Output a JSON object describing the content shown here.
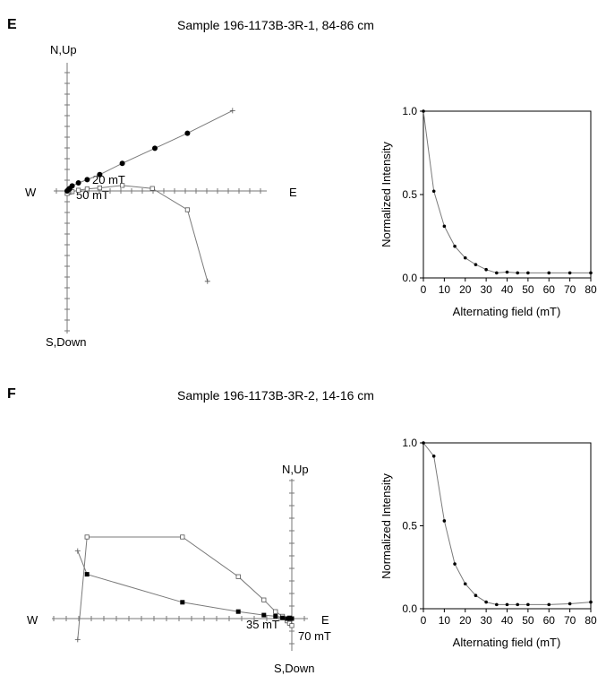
{
  "panels": [
    {
      "letter": "E",
      "title": "Sample 196-1173B-3R-1, 84-86 cm"
    },
    {
      "letter": "F",
      "title": "Sample 196-1173B-3R-2, 14-16 cm"
    }
  ],
  "chart_data": [
    {
      "type": "scatter",
      "subtype": "orthogonal-vector-plot",
      "panel": "E",
      "axis_labels": {
        "north": "N,Up",
        "south": "S,Down",
        "west": "W",
        "east": "E"
      },
      "annotations": [
        "20 mT",
        "50 mT"
      ],
      "series": [
        {
          "marker": "filled-circle",
          "points": [
            [
              48,
              23
            ],
            [
              35,
              17
            ],
            [
              22,
              11
            ],
            [
              13,
              6.5
            ],
            [
              8,
              4.5
            ],
            [
              4.5,
              3.2
            ],
            [
              2,
              2
            ],
            [
              1,
              1
            ],
            [
              0.5,
              0.5
            ],
            [
              0,
              0
            ]
          ]
        },
        {
          "marker": "open-square",
          "points": [
            [
              48,
              -7.5
            ],
            [
              34,
              1
            ],
            [
              22,
              2.2
            ],
            [
              13,
              1.2
            ],
            [
              8,
              0.8
            ],
            [
              4.5,
              0.3
            ],
            [
              2,
              -0.3
            ],
            [
              1,
              -0.5
            ],
            [
              0.5,
              -0.6
            ],
            [
              0,
              -1
            ]
          ]
        }
      ],
      "extension_points": {
        "filled": [
          [
            66,
            32
          ]
        ],
        "open": [
          [
            56,
            -36
          ]
        ]
      },
      "colors": {
        "line": "#7a7a7a",
        "marker": "#000000"
      }
    },
    {
      "type": "line",
      "panel": "E",
      "xlabel": "Alternating field (mT)",
      "ylabel": "Normalized Intensity",
      "xlim": [
        0,
        80
      ],
      "ylim": [
        0,
        1
      ],
      "xticks": [
        0,
        10,
        20,
        30,
        40,
        50,
        60,
        70,
        80
      ],
      "yticks": [
        "0.0",
        "0.5",
        "1.0"
      ],
      "x": [
        0,
        5,
        10,
        15,
        20,
        25,
        30,
        35,
        40,
        45,
        50,
        60,
        70,
        80
      ],
      "y": [
        1.0,
        0.52,
        0.31,
        0.19,
        0.12,
        0.08,
        0.05,
        0.03,
        0.035,
        0.03,
        0.03,
        0.03,
        0.03,
        0.03
      ]
    },
    {
      "type": "scatter",
      "subtype": "orthogonal-vector-plot",
      "panel": "F",
      "axis_labels": {
        "north": "N,Up",
        "south": "S,Down",
        "west": "W",
        "east": "E"
      },
      "annotations": [
        "35 mT",
        "70 mT"
      ],
      "series": [
        {
          "marker": "filled-square",
          "points": [
            [
              -88,
              19
            ],
            [
              -47,
              7
            ],
            [
              -23,
              3
            ],
            [
              -12,
              1.5
            ],
            [
              -7,
              1
            ],
            [
              -4,
              0.3
            ],
            [
              -2,
              0
            ],
            [
              -1,
              0.3
            ],
            [
              0,
              0
            ]
          ]
        },
        {
          "marker": "open-square",
          "points": [
            [
              -88,
              35
            ],
            [
              -47,
              35
            ],
            [
              -23,
              18
            ],
            [
              -12,
              8
            ],
            [
              -7,
              3
            ],
            [
              -4,
              1
            ],
            [
              -2,
              -1
            ],
            [
              -1,
              -2
            ],
            [
              0,
              -3
            ]
          ]
        }
      ],
      "extension_points": {
        "filled": [
          [
            -92,
            29
          ]
        ],
        "open": [
          [
            -92,
            -9
          ]
        ]
      },
      "colors": {
        "line": "#7a7a7a",
        "marker": "#000000"
      }
    },
    {
      "type": "line",
      "panel": "F",
      "xlabel": "Alternating field (mT)",
      "ylabel": "Normalized Intensity",
      "xlim": [
        0,
        80
      ],
      "ylim": [
        0,
        1
      ],
      "xticks": [
        0,
        10,
        20,
        30,
        40,
        50,
        60,
        70,
        80
      ],
      "yticks": [
        "0.0",
        "0.5",
        "1.0"
      ],
      "x": [
        0,
        5,
        10,
        15,
        20,
        25,
        30,
        35,
        40,
        45,
        50,
        60,
        70,
        80
      ],
      "y": [
        1.0,
        0.92,
        0.53,
        0.27,
        0.15,
        0.08,
        0.04,
        0.025,
        0.025,
        0.025,
        0.025,
        0.025,
        0.03,
        0.04
      ]
    }
  ]
}
